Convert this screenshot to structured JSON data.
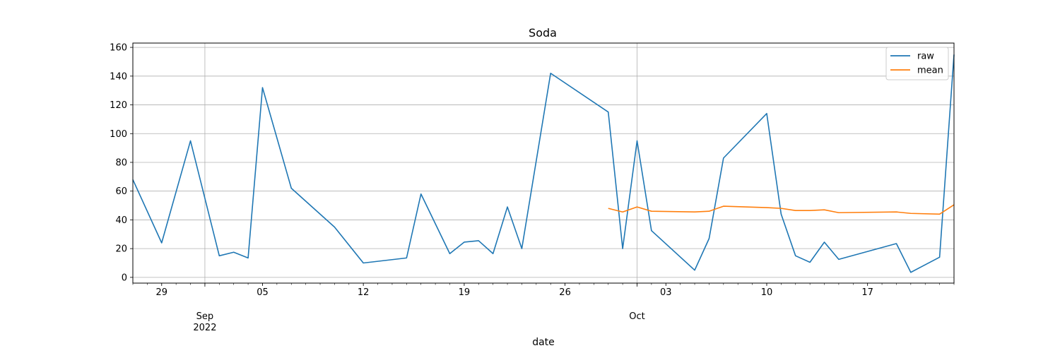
{
  "chart_data": {
    "type": "line",
    "title": "Soda",
    "xlabel": "date",
    "ylabel": "",
    "x_type": "date",
    "xlim": [
      "2022-08-27",
      "2022-10-23"
    ],
    "ylim": [
      -4,
      163
    ],
    "yticks": [
      0,
      20,
      40,
      60,
      80,
      100,
      120,
      140,
      160
    ],
    "xticks_major": [
      {
        "date": "2022-08-29",
        "label": "29"
      },
      {
        "date": "2022-09-01",
        "label": "Sep\n2022"
      },
      {
        "date": "2022-09-05",
        "label": "05"
      },
      {
        "date": "2022-09-12",
        "label": "12"
      },
      {
        "date": "2022-09-19",
        "label": "19"
      },
      {
        "date": "2022-09-26",
        "label": "26"
      },
      {
        "date": "2022-10-01",
        "label": "Oct"
      },
      {
        "date": "2022-10-03",
        "label": "03"
      },
      {
        "date": "2022-10-10",
        "label": "10"
      },
      {
        "date": "2022-10-17",
        "label": "17"
      }
    ],
    "grid": true,
    "grid_lines_x": [
      "2022-09-01",
      "2022-10-01"
    ],
    "legend_position": "top-right",
    "series": [
      {
        "name": "raw",
        "color": "#1f77b4",
        "points": [
          [
            "2022-08-27",
            68
          ],
          [
            "2022-08-29",
            24
          ],
          [
            "2022-08-31",
            95
          ],
          [
            "2022-09-02",
            15
          ],
          [
            "2022-09-03",
            17.5
          ],
          [
            "2022-09-04",
            13.5
          ],
          [
            "2022-09-05",
            132
          ],
          [
            "2022-09-07",
            62
          ],
          [
            "2022-09-10",
            35
          ],
          [
            "2022-09-12",
            10
          ],
          [
            "2022-09-15",
            13.5
          ],
          [
            "2022-09-16",
            58
          ],
          [
            "2022-09-18",
            16.5
          ],
          [
            "2022-09-19",
            24.5
          ],
          [
            "2022-09-20",
            25.5
          ],
          [
            "2022-09-21",
            16.5
          ],
          [
            "2022-09-22",
            49
          ],
          [
            "2022-09-23",
            20
          ],
          [
            "2022-09-25",
            142
          ],
          [
            "2022-09-29",
            115
          ],
          [
            "2022-09-30",
            20
          ],
          [
            "2022-10-01",
            95
          ],
          [
            "2022-10-02",
            32.5
          ],
          [
            "2022-10-05",
            5
          ],
          [
            "2022-10-06",
            27
          ],
          [
            "2022-10-07",
            83
          ],
          [
            "2022-10-10",
            114
          ],
          [
            "2022-10-11",
            44
          ],
          [
            "2022-10-12",
            15
          ],
          [
            "2022-10-13",
            10.5
          ],
          [
            "2022-10-14",
            24.5
          ],
          [
            "2022-10-15",
            12.5
          ],
          [
            "2022-10-19",
            23.5
          ],
          [
            "2022-10-20",
            3.5
          ],
          [
            "2022-10-22",
            14
          ],
          [
            "2022-10-23",
            155
          ]
        ]
      },
      {
        "name": "mean",
        "color": "#ff7f0e",
        "points": [
          [
            "2022-09-29",
            48
          ],
          [
            "2022-09-30",
            45.5
          ],
          [
            "2022-10-01",
            49
          ],
          [
            "2022-10-02",
            46
          ],
          [
            "2022-10-05",
            45.5
          ],
          [
            "2022-10-06",
            46
          ],
          [
            "2022-10-07",
            49.5
          ],
          [
            "2022-10-10",
            48.5
          ],
          [
            "2022-10-11",
            48
          ],
          [
            "2022-10-12",
            46.5
          ],
          [
            "2022-10-13",
            46.5
          ],
          [
            "2022-10-14",
            47
          ],
          [
            "2022-10-15",
            45
          ],
          [
            "2022-10-19",
            45.5
          ],
          [
            "2022-10-20",
            44.5
          ],
          [
            "2022-10-22",
            44
          ],
          [
            "2022-10-23",
            50.5
          ]
        ]
      }
    ]
  }
}
